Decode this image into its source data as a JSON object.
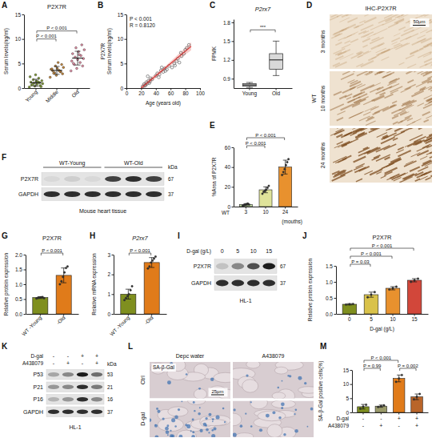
{
  "chart_data": [
    {
      "label": "A",
      "type": "dot",
      "title": "P2X7R",
      "ylabel": "Serum levels(ng/ml)",
      "categories": [
        "Young",
        "Middle",
        "Old"
      ],
      "points": [
        [
          0.2,
          0.4,
          0.5,
          0.6,
          0.8,
          0.9,
          1.0,
          1.1,
          1.2,
          1.4,
          1.5,
          1.7,
          2.0,
          2.3,
          2.7,
          0.3,
          0.7,
          1.3
        ],
        [
          2.2,
          2.6,
          2.9,
          3.1,
          3.3,
          3.5,
          3.6,
          3.8,
          4.0,
          4.2,
          4.5,
          4.8,
          3.0,
          3.4,
          3.9,
          5.2
        ],
        [
          3.5,
          4.0,
          4.5,
          4.8,
          5.2,
          5.5,
          5.8,
          6.0,
          6.3,
          6.6,
          7.0,
          7.4,
          7.8,
          8.2,
          8.8,
          5.0,
          6.8
        ]
      ],
      "means": [
        1.1,
        3.6,
        6.1
      ],
      "errors": [
        0.7,
        0.8,
        1.4
      ],
      "colors": [
        "#7f9a35",
        "#c98a3c",
        "#e891a8"
      ],
      "ylim": [
        0,
        15
      ],
      "yticks": [
        0,
        5,
        10,
        15
      ],
      "comparisons": [
        {
          "pair": [
            0,
            1
          ],
          "label": "P < 0.001"
        },
        {
          "pair": [
            0,
            2
          ],
          "label": "P < 0.001"
        }
      ]
    },
    {
      "label": "B",
      "type": "scatter",
      "ylabel": [
        "P2X7R",
        "Serum levels(ng/ml)"
      ],
      "xlabel": "Age (years old)",
      "x": [
        22,
        24,
        25,
        27,
        28,
        30,
        31,
        33,
        35,
        26,
        29,
        32,
        40,
        42,
        45,
        47,
        50,
        52,
        55,
        58,
        44,
        48,
        53,
        62,
        65,
        68,
        70,
        72,
        75,
        78,
        80,
        82,
        85,
        66,
        74
      ],
      "y": [
        0.3,
        0.8,
        0.5,
        1.2,
        0.9,
        1.5,
        1.0,
        2.0,
        1.8,
        0.6,
        2.4,
        1.3,
        2.5,
        3.0,
        2.8,
        3.6,
        3.3,
        4.0,
        3.8,
        4.5,
        2.2,
        4.2,
        3.5,
        4.2,
        5.0,
        5.5,
        6.0,
        5.2,
        6.5,
        7.0,
        7.8,
        8.2,
        8.8,
        4.6,
        7.2
      ],
      "fit": {
        "x": [
          20,
          88
        ],
        "y": [
          0,
          8.5
        ]
      },
      "fit_band": {
        "x": [
          20,
          54,
          88
        ],
        "lower": [
          -0.6,
          3.9,
          7.7
        ],
        "upper": [
          0.6,
          4.6,
          9.3
        ]
      },
      "color": "#666666",
      "xlim": [
        0,
        100
      ],
      "xticks": [
        0,
        20,
        40,
        60,
        80,
        100
      ],
      "ylim": [
        0,
        15
      ],
      "yticks": [
        0,
        5,
        10,
        15
      ],
      "annotations": [
        "P < 0.001",
        "R = 0.8120"
      ]
    },
    {
      "label": "C",
      "type": "box",
      "title": "P2rx7",
      "ylabel": "FPMK",
      "categories": [
        "Young",
        "Old"
      ],
      "boxes": [
        {
          "min": 0.76,
          "q1": 0.78,
          "median": 0.8,
          "q3": 0.82,
          "max": 0.84
        },
        {
          "min": 0.95,
          "q1": 1.05,
          "median": 1.2,
          "q3": 1.3,
          "max": 1.5
        }
      ],
      "ylim": [
        0.75,
        1.85
      ],
      "yticks": [
        0.9,
        1.2,
        1.5,
        1.8
      ],
      "comparisons": [
        {
          "pair": [
            0,
            1
          ],
          "label": "***"
        }
      ]
    },
    {
      "label": "D",
      "type": "image",
      "title": "IHC-P2X7R",
      "group": "WT",
      "rows": [
        "3 months",
        "10 months",
        "24 months"
      ],
      "scale_bar": "50μm"
    },
    {
      "label": "E",
      "type": "bar",
      "ylabel": "%Area of P2X7R",
      "categories": [
        "3",
        "10",
        "24"
      ],
      "group_label": "WT",
      "unit_label": "(mouths)",
      "values": [
        2,
        17,
        40
      ],
      "errors": [
        1,
        3,
        7
      ],
      "points": [
        [
          1,
          1.5,
          2,
          2.5,
          3,
          2
        ],
        [
          13,
          15,
          16,
          17,
          19,
          21
        ],
        [
          32,
          35,
          38,
          42,
          45,
          48
        ]
      ],
      "colors": [
        "#c5e0a5",
        "#dfe39a",
        "#e8912e"
      ],
      "ylim": [
        0,
        60
      ],
      "yticks": [
        0,
        20,
        40,
        60
      ],
      "comparisons": [
        {
          "pair": [
            0,
            1
          ],
          "label": "P < 0.001"
        },
        {
          "pair": [
            0,
            2
          ],
          "label": "P < 0.001"
        }
      ]
    },
    {
      "label": "F",
      "type": "blot",
      "groups": [
        {
          "text": "WT-Young",
          "lanes": 3
        },
        {
          "text": "WT-Old",
          "lanes": 3
        }
      ],
      "rows": [
        {
          "name": "P2X7R",
          "kda": 67,
          "intensity": [
            0.25,
            0.3,
            0.25,
            0.8,
            0.85,
            0.8
          ]
        },
        {
          "name": "GAPDH",
          "kda": 37,
          "intensity": [
            0.85,
            0.85,
            0.85,
            0.85,
            0.85,
            0.85
          ]
        }
      ],
      "kda_label": "kDa",
      "caption": "Mouse heart tissue"
    },
    {
      "label": "G",
      "type": "bar",
      "title": "P2X7R",
      "ylabel": "Relative protein expression",
      "categories": [
        "WT -Young",
        "-Old"
      ],
      "values": [
        0.55,
        1.3
      ],
      "errors": [
        0.03,
        0.25
      ],
      "points": [
        [
          0.52,
          0.54,
          0.55,
          0.56,
          0.57,
          0.53
        ],
        [
          1.0,
          1.1,
          1.25,
          1.4,
          1.55,
          1.6
        ]
      ],
      "colors": [
        "#7f8f1f",
        "#e07b1a"
      ],
      "ylim": [
        0,
        2
      ],
      "yticks": [
        {
          "value": 0,
          "label": "0.0"
        },
        0.5,
        {
          "value": 1,
          "label": "1.0"
        },
        1.5,
        {
          "value": 2,
          "label": "2.0"
        }
      ],
      "comparisons": [
        {
          "pair": [
            0,
            1
          ],
          "label": "P < 0.001"
        }
      ]
    },
    {
      "label": "H",
      "type": "bar",
      "title": "P2rx7",
      "ylabel": "Relative mRNA expression",
      "categories": [
        "WT -Young",
        "-Old"
      ],
      "values": [
        1.0,
        2.6
      ],
      "errors": [
        0.25,
        0.25
      ],
      "points": [
        [
          0.7,
          0.8,
          0.9,
          1.0,
          1.2,
          1.4
        ],
        [
          2.3,
          2.4,
          2.6,
          2.7,
          2.8,
          2.9
        ]
      ],
      "colors": [
        "#7f8f1f",
        "#e07b1a"
      ],
      "ylim": [
        0,
        3
      ],
      "yticks": [
        0,
        1,
        2,
        3
      ],
      "comparisons": [
        {
          "pair": [
            0,
            1
          ],
          "label": "P < 0.001"
        }
      ]
    },
    {
      "label": "I",
      "type": "blot",
      "header_rows": [
        {
          "name": "D-gal (g/L)",
          "levels": [
            "0",
            "5",
            "10",
            "15"
          ]
        }
      ],
      "rows": [
        {
          "name": "P2X7R",
          "kda": 67,
          "intensity": [
            0.35,
            0.55,
            0.75,
            0.9
          ]
        },
        {
          "name": "GAPDH",
          "kda": 37,
          "intensity": [
            0.85,
            0.85,
            0.85,
            0.85
          ]
        }
      ],
      "caption": "HL-1"
    },
    {
      "label": "J",
      "type": "bar",
      "title": "P2X7R",
      "ylabel": "Relative protein expression",
      "xlabel": "D-gal (g/L)",
      "categories": [
        "0",
        "5",
        "10",
        "15"
      ],
      "values": [
        0.3,
        0.6,
        0.8,
        1.05
      ],
      "errors": [
        0.02,
        0.08,
        0.05,
        0.05
      ],
      "points": [
        [
          0.29,
          0.3,
          0.31
        ],
        [
          0.52,
          0.6,
          0.68
        ],
        [
          0.76,
          0.8,
          0.85
        ],
        [
          1.0,
          1.05,
          1.1
        ]
      ],
      "colors": [
        "#7f8f1f",
        "#d9c24a",
        "#e8912e",
        "#d2473a"
      ],
      "ylim": [
        0,
        1.5
      ],
      "yticks": [
        {
          "value": 0,
          "label": "0.0"
        },
        0.5,
        {
          "value": 1,
          "label": "1.0"
        },
        1.5
      ],
      "comparisons": [
        {
          "pair": [
            0,
            1
          ],
          "label": "P = 0.03"
        },
        {
          "pair": [
            0,
            2
          ],
          "label": "P < 0.001"
        },
        {
          "pair": [
            0,
            3
          ],
          "label": "P < 0.001"
        }
      ]
    },
    {
      "label": "K",
      "type": "blot",
      "header_rows": [
        {
          "name": "D-gal",
          "levels": [
            "-",
            "-",
            "+",
            "+"
          ]
        },
        {
          "name": "A438079",
          "levels": [
            "-",
            "+",
            "-",
            "+"
          ]
        }
      ],
      "rows": [
        {
          "name": "P53",
          "kda": 53,
          "intensity": [
            0.45,
            0.55,
            0.9,
            0.65
          ]
        },
        {
          "name": "P21",
          "kda": 21,
          "intensity": [
            0.5,
            0.55,
            0.85,
            0.6
          ]
        },
        {
          "name": "P16",
          "kda": 16,
          "intensity": [
            0.4,
            0.5,
            0.85,
            0.55
          ]
        },
        {
          "name": "GAPDH",
          "kda": 37,
          "intensity": [
            0.85,
            0.85,
            0.85,
            0.85
          ]
        }
      ],
      "kda_label": "kDa",
      "caption": "HL-1"
    },
    {
      "label": "L",
      "type": "image",
      "stain": "SA-β-Gal",
      "columns": [
        "Depc water",
        "A438079"
      ],
      "rows": [
        "Ctrl",
        "D-gal"
      ],
      "scale_bar": "25μm"
    },
    {
      "label": "M",
      "type": "bar",
      "ylabel": "SA-β-Gal positive cells(%)",
      "categories": [
        null,
        null,
        null,
        null
      ],
      "factors": [
        {
          "name": "D-gal",
          "levels": [
            "-",
            "-",
            "+",
            "+"
          ]
        },
        {
          "name": "A438079",
          "levels": [
            "-",
            "+",
            "-",
            "+"
          ]
        }
      ],
      "values": [
        2,
        2.2,
        12,
        5.5
      ],
      "errors": [
        0.8,
        0.4,
        1.2,
        1.0
      ],
      "points": [
        [
          1.3,
          2,
          2.7
        ],
        [
          1.9,
          2.2,
          2.5
        ],
        [
          10.8,
          12,
          13.2
        ],
        [
          4.6,
          5.5,
          6.5
        ]
      ],
      "colors": [
        "#7f8f1f",
        "#9a9a6a",
        "#e07b1a",
        "#b9652a"
      ],
      "ylim": [
        0,
        15
      ],
      "yticks": [
        0,
        5,
        10,
        15
      ],
      "comparisons": [
        {
          "pair": [
            0,
            1
          ],
          "label": "P = 0.99"
        },
        {
          "pair": [
            0,
            2
          ],
          "label": "P < 0.001"
        },
        {
          "pair": [
            2,
            3
          ],
          "label": "P = 0.002"
        }
      ]
    }
  ]
}
